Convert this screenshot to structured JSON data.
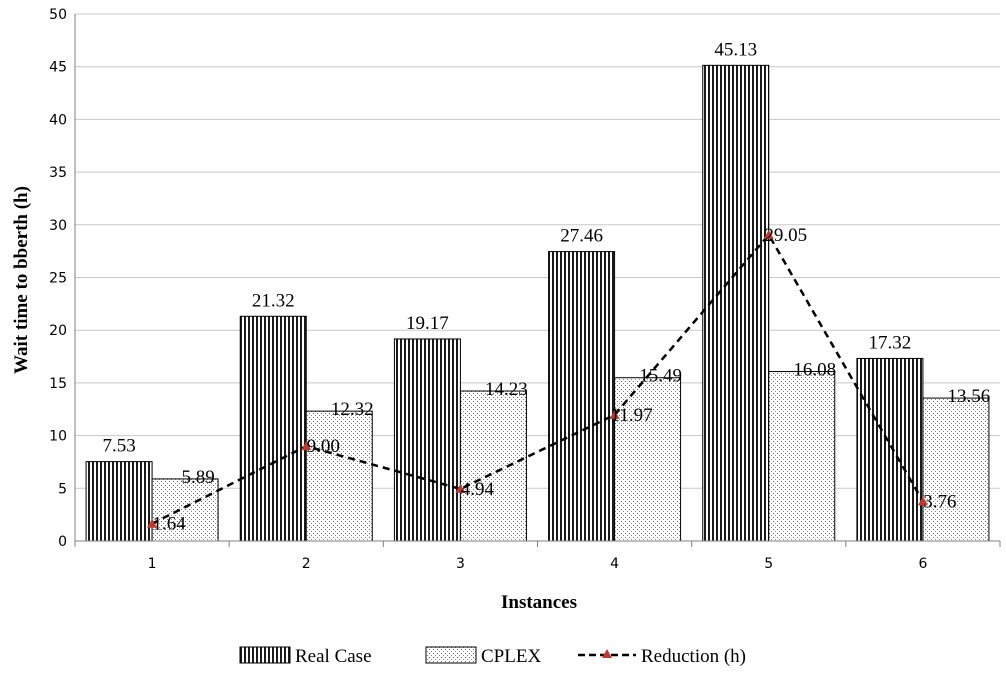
{
  "chart_data": {
    "type": "bar",
    "categories": [
      "1",
      "2",
      "3",
      "4",
      "5",
      "6"
    ],
    "series": [
      {
        "name": "Real Case",
        "kind": "bar",
        "pattern": "vertical-stripes",
        "values": [
          7.53,
          21.32,
          19.17,
          27.46,
          45.13,
          17.32
        ],
        "labels": [
          "7.53",
          "21.32",
          "19.17",
          "27.46",
          "45.13",
          "17.32"
        ]
      },
      {
        "name": "CPLEX",
        "kind": "bar",
        "pattern": "dots",
        "values": [
          5.89,
          12.32,
          14.23,
          15.49,
          16.08,
          13.56
        ],
        "labels": [
          "5.89",
          "12.32",
          "14.23",
          "15.49",
          "16.08",
          "13.56"
        ]
      },
      {
        "name": "Reduction (h)",
        "kind": "line",
        "style": "dashed",
        "marker": "triangle",
        "marker_color": "#c0392b",
        "values": [
          1.64,
          9.0,
          4.94,
          11.97,
          29.05,
          3.76
        ],
        "labels": [
          "1.64",
          "9.00",
          "4.94",
          "11.97",
          "29.05",
          "3.76"
        ]
      }
    ],
    "xlabel": "Instances",
    "ylabel": "Wait time to bberth  (h)",
    "ylim": [
      0,
      50
    ],
    "yticks": [
      "0",
      "5",
      "10",
      "15",
      "20",
      "25",
      "30",
      "35",
      "40",
      "45",
      "50"
    ],
    "grid": true,
    "legend_position": "bottom"
  }
}
